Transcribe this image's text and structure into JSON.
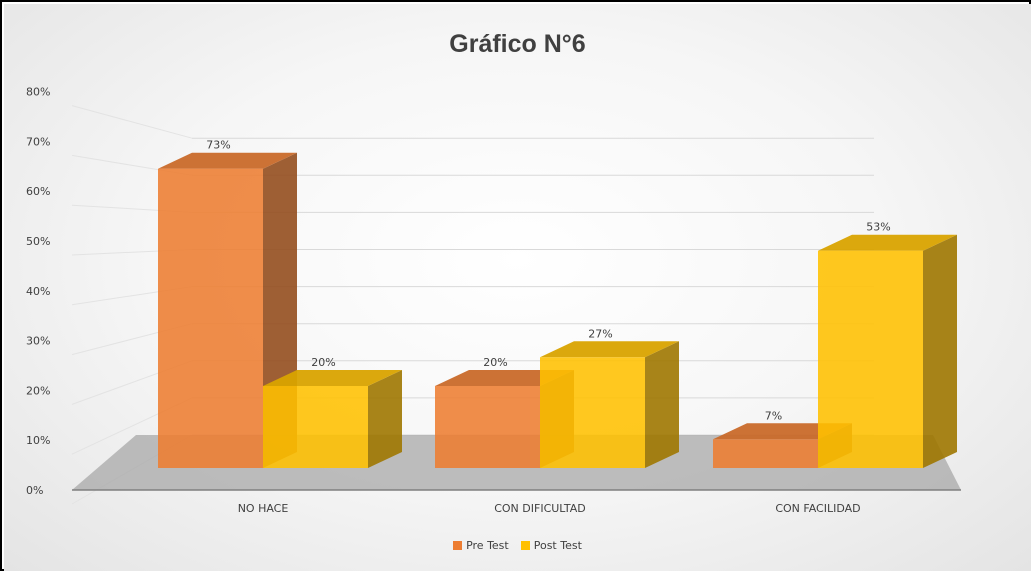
{
  "chart_data": {
    "type": "bar",
    "title": "Gráfico N°6",
    "categories": [
      "NO HACE",
      "CON DIFICULTAD",
      "CON FACILIDAD"
    ],
    "series": [
      {
        "name": "Pre Test",
        "values": [
          73,
          20,
          7
        ],
        "labels": [
          "73%",
          "20%",
          "7%"
        ],
        "color": "#ED7D31"
      },
      {
        "name": "Post Test",
        "values": [
          20,
          27,
          53
        ],
        "labels": [
          "20%",
          "27%",
          "53%"
        ],
        "color": "#FFC000"
      }
    ],
    "yticks": [
      "0%",
      "10%",
      "20%",
      "30%",
      "40%",
      "50%",
      "60%",
      "70%",
      "80%"
    ],
    "ylim": [
      0,
      80
    ],
    "xlabel": "",
    "ylabel": "",
    "grid": true,
    "legend": "bottom",
    "style": "3d-clustered-column"
  }
}
